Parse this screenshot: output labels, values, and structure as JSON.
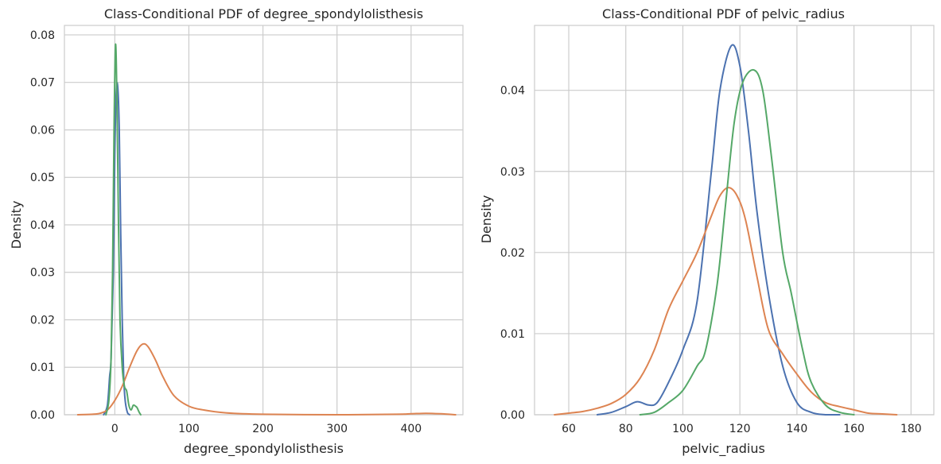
{
  "colors": {
    "blue": "#4c72b0",
    "orange": "#dd8452",
    "green": "#55a868",
    "grid": "#cccccc",
    "text": "#262626"
  },
  "chart_data": [
    {
      "type": "line",
      "title": "Class-Conditional PDF of degree_spondylolisthesis",
      "xlabel": "degree_spondylolisthesis",
      "ylabel": "Density",
      "xlim": [
        -68,
        470
      ],
      "ylim": [
        0,
        0.082
      ],
      "xticks": [
        0,
        100,
        200,
        300,
        400
      ],
      "yticks": [
        0.0,
        0.01,
        0.02,
        0.03,
        0.04,
        0.05,
        0.06,
        0.07,
        0.08
      ],
      "xtick_labels": [
        "0",
        "100",
        "200",
        "300",
        "400"
      ],
      "ytick_labels": [
        "0.00",
        "0.01",
        "0.02",
        "0.03",
        "0.04",
        "0.05",
        "0.06",
        "0.07",
        "0.08"
      ],
      "grid": true,
      "series": [
        {
          "color": "#4c72b0",
          "x": [
            -15,
            -10,
            -7,
            -5,
            -2,
            0,
            2,
            4,
            6,
            8,
            10,
            12,
            14,
            17,
            20
          ],
          "y": [
            0,
            0.002,
            0.008,
            0.012,
            0.03,
            0.055,
            0.068,
            0.069,
            0.06,
            0.038,
            0.02,
            0.008,
            0.003,
            0.0005,
            0
          ]
        },
        {
          "color": "#dd8452",
          "x": [
            -50,
            -30,
            -20,
            -10,
            0,
            10,
            20,
            30,
            38,
            45,
            55,
            65,
            80,
            100,
            120,
            150,
            200,
            300,
            380,
            400,
            420,
            440,
            460
          ],
          "y": [
            0,
            0.0001,
            0.0003,
            0.001,
            0.003,
            0.006,
            0.01,
            0.0135,
            0.0149,
            0.0143,
            0.0115,
            0.008,
            0.004,
            0.0018,
            0.001,
            0.0004,
            0.0001,
            0,
            0.0001,
            0.0002,
            0.0003,
            0.0002,
            0
          ]
        },
        {
          "color": "#55a868",
          "x": [
            -12,
            -8,
            -5,
            -3,
            -1,
            1,
            3,
            5,
            7,
            10,
            13,
            16,
            19,
            22,
            25,
            28,
            30,
            33,
            35
          ],
          "y": [
            0,
            0.003,
            0.012,
            0.03,
            0.06,
            0.078,
            0.065,
            0.04,
            0.02,
            0.01,
            0.006,
            0.005,
            0.002,
            0.001,
            0.002,
            0.0018,
            0.0015,
            0.0005,
            0
          ]
        }
      ]
    },
    {
      "type": "line",
      "title": "Class-Conditional PDF of pelvic_radius",
      "xlabel": "pelvic_radius",
      "ylabel": "Density",
      "xlim": [
        48,
        188
      ],
      "ylim": [
        0,
        0.048
      ],
      "xticks": [
        60,
        80,
        100,
        120,
        140,
        160,
        180
      ],
      "yticks": [
        0.0,
        0.01,
        0.02,
        0.03,
        0.04
      ],
      "xtick_labels": [
        "60",
        "80",
        "100",
        "120",
        "140",
        "160",
        "180"
      ],
      "ytick_labels": [
        "0.00",
        "0.01",
        "0.02",
        "0.03",
        "0.04"
      ],
      "grid": true,
      "series": [
        {
          "color": "#4c72b0",
          "x": [
            70,
            75,
            80,
            84,
            88,
            91,
            95,
            100,
            105,
            110,
            113,
            117,
            120,
            123,
            126,
            130,
            135,
            140,
            145,
            150,
            155
          ],
          "y": [
            0,
            0.0003,
            0.001,
            0.0016,
            0.0012,
            0.0015,
            0.004,
            0.008,
            0.014,
            0.03,
            0.04,
            0.0455,
            0.043,
            0.035,
            0.025,
            0.015,
            0.006,
            0.0015,
            0.0003,
            0,
            0
          ]
        },
        {
          "color": "#dd8452",
          "x": [
            55,
            60,
            65,
            70,
            75,
            80,
            85,
            90,
            95,
            100,
            105,
            110,
            113,
            116,
            119,
            122,
            126,
            130,
            135,
            140,
            145,
            150,
            155,
            160,
            165,
            170,
            175
          ],
          "y": [
            0,
            0.0002,
            0.0004,
            0.0008,
            0.0014,
            0.0025,
            0.0045,
            0.008,
            0.013,
            0.0165,
            0.02,
            0.0245,
            0.027,
            0.028,
            0.027,
            0.024,
            0.017,
            0.0105,
            0.0075,
            0.005,
            0.0028,
            0.0015,
            0.001,
            0.0006,
            0.0002,
            0.0001,
            0
          ]
        },
        {
          "color": "#55a868",
          "x": [
            85,
            90,
            95,
            100,
            105,
            108,
            112,
            115,
            118,
            121,
            125,
            128,
            131,
            135,
            138,
            142,
            145,
            150,
            155,
            160
          ],
          "y": [
            0,
            0.0003,
            0.0015,
            0.003,
            0.006,
            0.008,
            0.016,
            0.026,
            0.036,
            0.041,
            0.0425,
            0.04,
            0.032,
            0.02,
            0.015,
            0.008,
            0.004,
            0.0012,
            0.0003,
            0
          ]
        }
      ]
    }
  ]
}
